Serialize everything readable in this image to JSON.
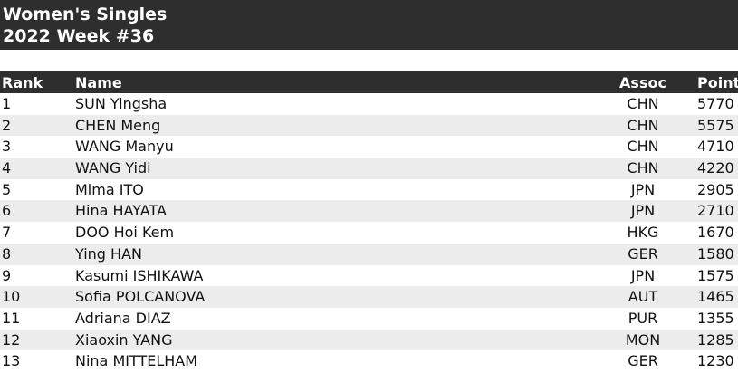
{
  "header": {
    "title": "Women's Singles",
    "subtitle": "2022 Week #36"
  },
  "table": {
    "columns": [
      "Rank",
      "Name",
      "Assoc",
      "Points"
    ],
    "rows": [
      [
        1,
        "SUN Yingsha",
        "CHN",
        5770
      ],
      [
        2,
        "CHEN Meng",
        "CHN",
        5575
      ],
      [
        3,
        "WANG Manyu",
        "CHN",
        4710
      ],
      [
        4,
        "WANG Yidi",
        "CHN",
        4220
      ],
      [
        5,
        "Mima ITO",
        "JPN",
        2905
      ],
      [
        6,
        "Hina HAYATA",
        "JPN",
        2710
      ],
      [
        7,
        "DOO Hoi Kem",
        "HKG",
        1670
      ],
      [
        8,
        "Ying HAN",
        "GER",
        1580
      ],
      [
        9,
        "Kasumi ISHIKAWA",
        "JPN",
        1575
      ],
      [
        10,
        "Sofia POLCANOVA",
        "AUT",
        1465
      ],
      [
        11,
        "Adriana DIAZ",
        "PUR",
        1355
      ],
      [
        12,
        "Xiaoxin YANG",
        "MON",
        1285
      ],
      [
        13,
        "Nina MITTELHAM",
        "GER",
        1230
      ]
    ]
  }
}
